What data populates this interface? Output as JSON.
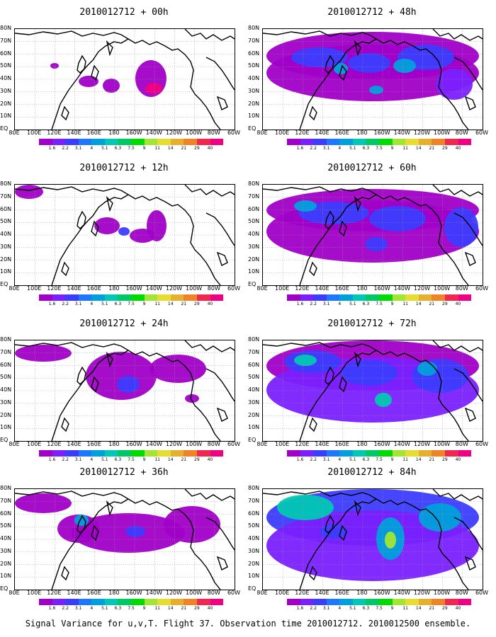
{
  "panels": [
    {
      "title": "2010012712 + 00h"
    },
    {
      "title": "2010012712 + 48h"
    },
    {
      "title": "2010012712 + 12h"
    },
    {
      "title": "2010012712 + 60h"
    },
    {
      "title": "2010012712 + 24h"
    },
    {
      "title": "2010012712 + 72h"
    },
    {
      "title": "2010012712 + 36h"
    },
    {
      "title": "2010012712 + 84h"
    }
  ],
  "lat_labels": [
    "80N",
    "70N",
    "60N",
    "50N",
    "40N",
    "30N",
    "20N",
    "10N",
    "EQ"
  ],
  "lon_labels": [
    "80E",
    "100E",
    "120E",
    "140E",
    "160E",
    "180",
    "160W",
    "140W",
    "120W",
    "100W",
    "80W",
    "60W"
  ],
  "colorbar": {
    "labels": [
      "1.6",
      "2.2",
      "3.1",
      "4",
      "5.1",
      "6.3",
      "7.5",
      "9",
      "11",
      "14",
      "21",
      "29",
      "40"
    ],
    "colors": [
      "#a000c8",
      "#7a20ff",
      "#3c3cff",
      "#1e78ff",
      "#00a0dc",
      "#00c8b4",
      "#00c864",
      "#00dc00",
      "#a0e632",
      "#e6dc32",
      "#e6af2d",
      "#f08228",
      "#f02850",
      "#f00082"
    ]
  },
  "footer": "Signal Variance for u,v,T. Flight 37. Observation time 2010012712. 2010012500 ensemble."
}
